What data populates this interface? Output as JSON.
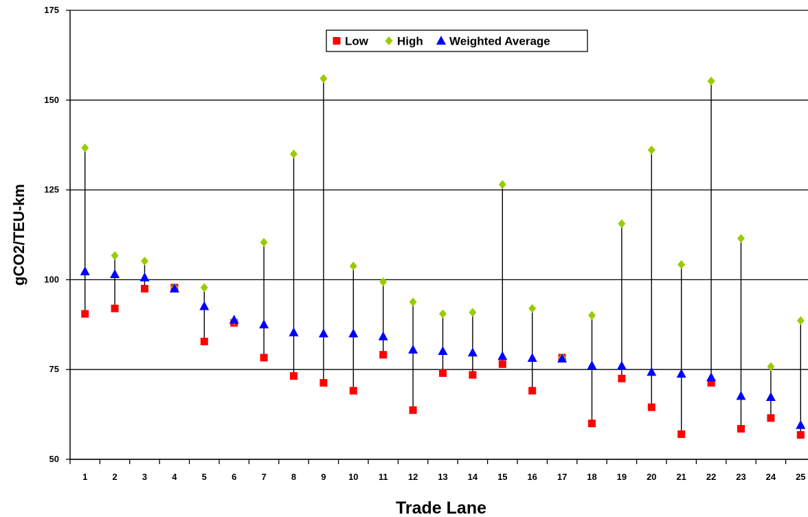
{
  "chart_data": {
    "type": "scatter",
    "xlabel": "Trade Lane",
    "ylabel": "gCO2/TEU-km",
    "ylim": [
      50,
      175
    ],
    "yticks": [
      50,
      75,
      100,
      125,
      150,
      175
    ],
    "categories": [
      "1",
      "2",
      "3",
      "4",
      "5",
      "6",
      "7",
      "8",
      "9",
      "10",
      "11",
      "12",
      "13",
      "14",
      "15",
      "16",
      "17",
      "18",
      "19",
      "20",
      "21",
      "22",
      "23",
      "24",
      "25"
    ],
    "grid": "horizontal",
    "legend_position": "top-center",
    "series": [
      {
        "name": "Low",
        "marker": "square",
        "color": "#ff0000",
        "values": [
          90.5,
          92,
          97.5,
          97.8,
          82.8,
          88,
          78.3,
          73.2,
          71.3,
          69.1,
          79.1,
          63.7,
          74,
          73.5,
          76.5,
          69.1,
          78.3,
          60,
          72.5,
          64.5,
          57,
          71.3,
          58.5,
          61.5,
          56.8
        ]
      },
      {
        "name": "High",
        "marker": "diamond",
        "color": "#99cc00",
        "values": [
          136.7,
          106.7,
          105.2,
          97.8,
          97.8,
          88.6,
          110.4,
          135,
          156,
          103.8,
          99.4,
          93.8,
          90.5,
          90.9,
          126.5,
          92,
          78.3,
          90.1,
          115.6,
          136.1,
          104.2,
          155.3,
          111.5,
          75.8,
          88.6
        ]
      },
      {
        "name": "Weighted Average",
        "marker": "triangle",
        "color": "#0000ff",
        "values": [
          102.3,
          101.5,
          100.6,
          97.5,
          92.6,
          88.8,
          87.5,
          85.3,
          85,
          85,
          84.2,
          80.5,
          80.1,
          79.7,
          78.7,
          78.2,
          78,
          76.1,
          76,
          74.3,
          73.8,
          72.8,
          67.6,
          67.3,
          59.5
        ]
      }
    ]
  }
}
